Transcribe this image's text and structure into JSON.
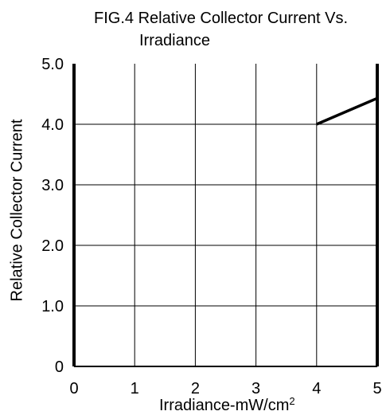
{
  "chart_data": {
    "type": "line",
    "title_line1": "FIG.4 Relative Collector Current Vs.",
    "title_line2": "Irradiance",
    "xlabel": "Irradiance-mW/cm",
    "xlabel_sup": "2",
    "ylabel": "Relative Collector Current",
    "xlim": [
      0,
      5
    ],
    "ylim": [
      0,
      5
    ],
    "x_ticks": [
      "0",
      "1",
      "2",
      "3",
      "4",
      "5"
    ],
    "y_ticks": [
      "0",
      "1.0",
      "2.0",
      "3.0",
      "4.0",
      "5.0"
    ],
    "grid": true,
    "series": [
      {
        "x": [
          4.0,
          5.0
        ],
        "y": [
          4.0,
          4.43
        ]
      }
    ]
  }
}
